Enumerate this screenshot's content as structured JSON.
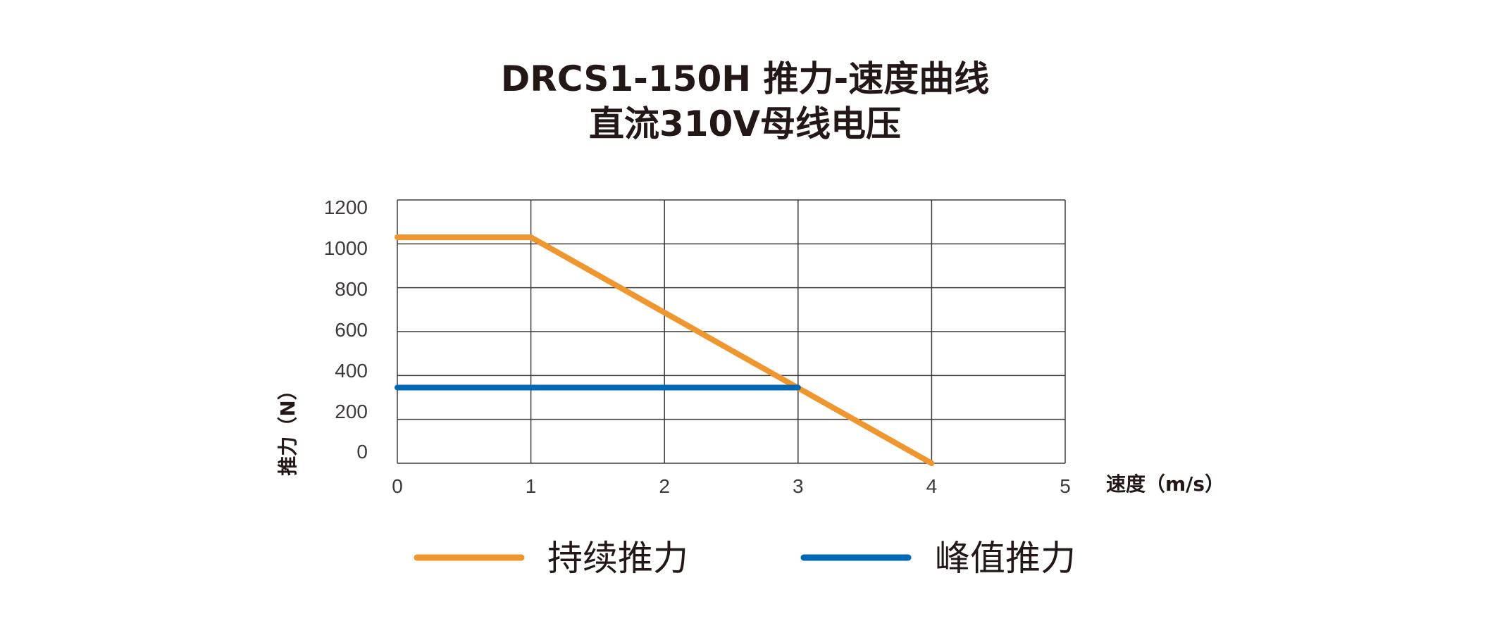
{
  "chart_data": {
    "type": "line",
    "title": "DRCS1-150H 推力-速度曲线",
    "subtitle": "直流310V母线电压",
    "xlabel": "速度（m/s）",
    "ylabel": "推力（N）",
    "xlim": [
      0,
      5
    ],
    "ylim": [
      0,
      1200
    ],
    "x_ticks": [
      "0",
      "1",
      "2",
      "3",
      "4",
      "5"
    ],
    "y_ticks": [
      "0",
      "200",
      "400",
      "600",
      "800",
      "1000",
      "1200"
    ],
    "grid": true,
    "legend_position": "bottom",
    "series": [
      {
        "name": "持续推力",
        "color": "#F0962E",
        "points": [
          [
            0,
            1030
          ],
          [
            1,
            1030
          ],
          [
            4,
            0
          ]
        ]
      },
      {
        "name": "峰值推力",
        "color": "#0068B7",
        "points": [
          [
            0,
            345
          ],
          [
            3,
            345
          ]
        ]
      }
    ]
  }
}
